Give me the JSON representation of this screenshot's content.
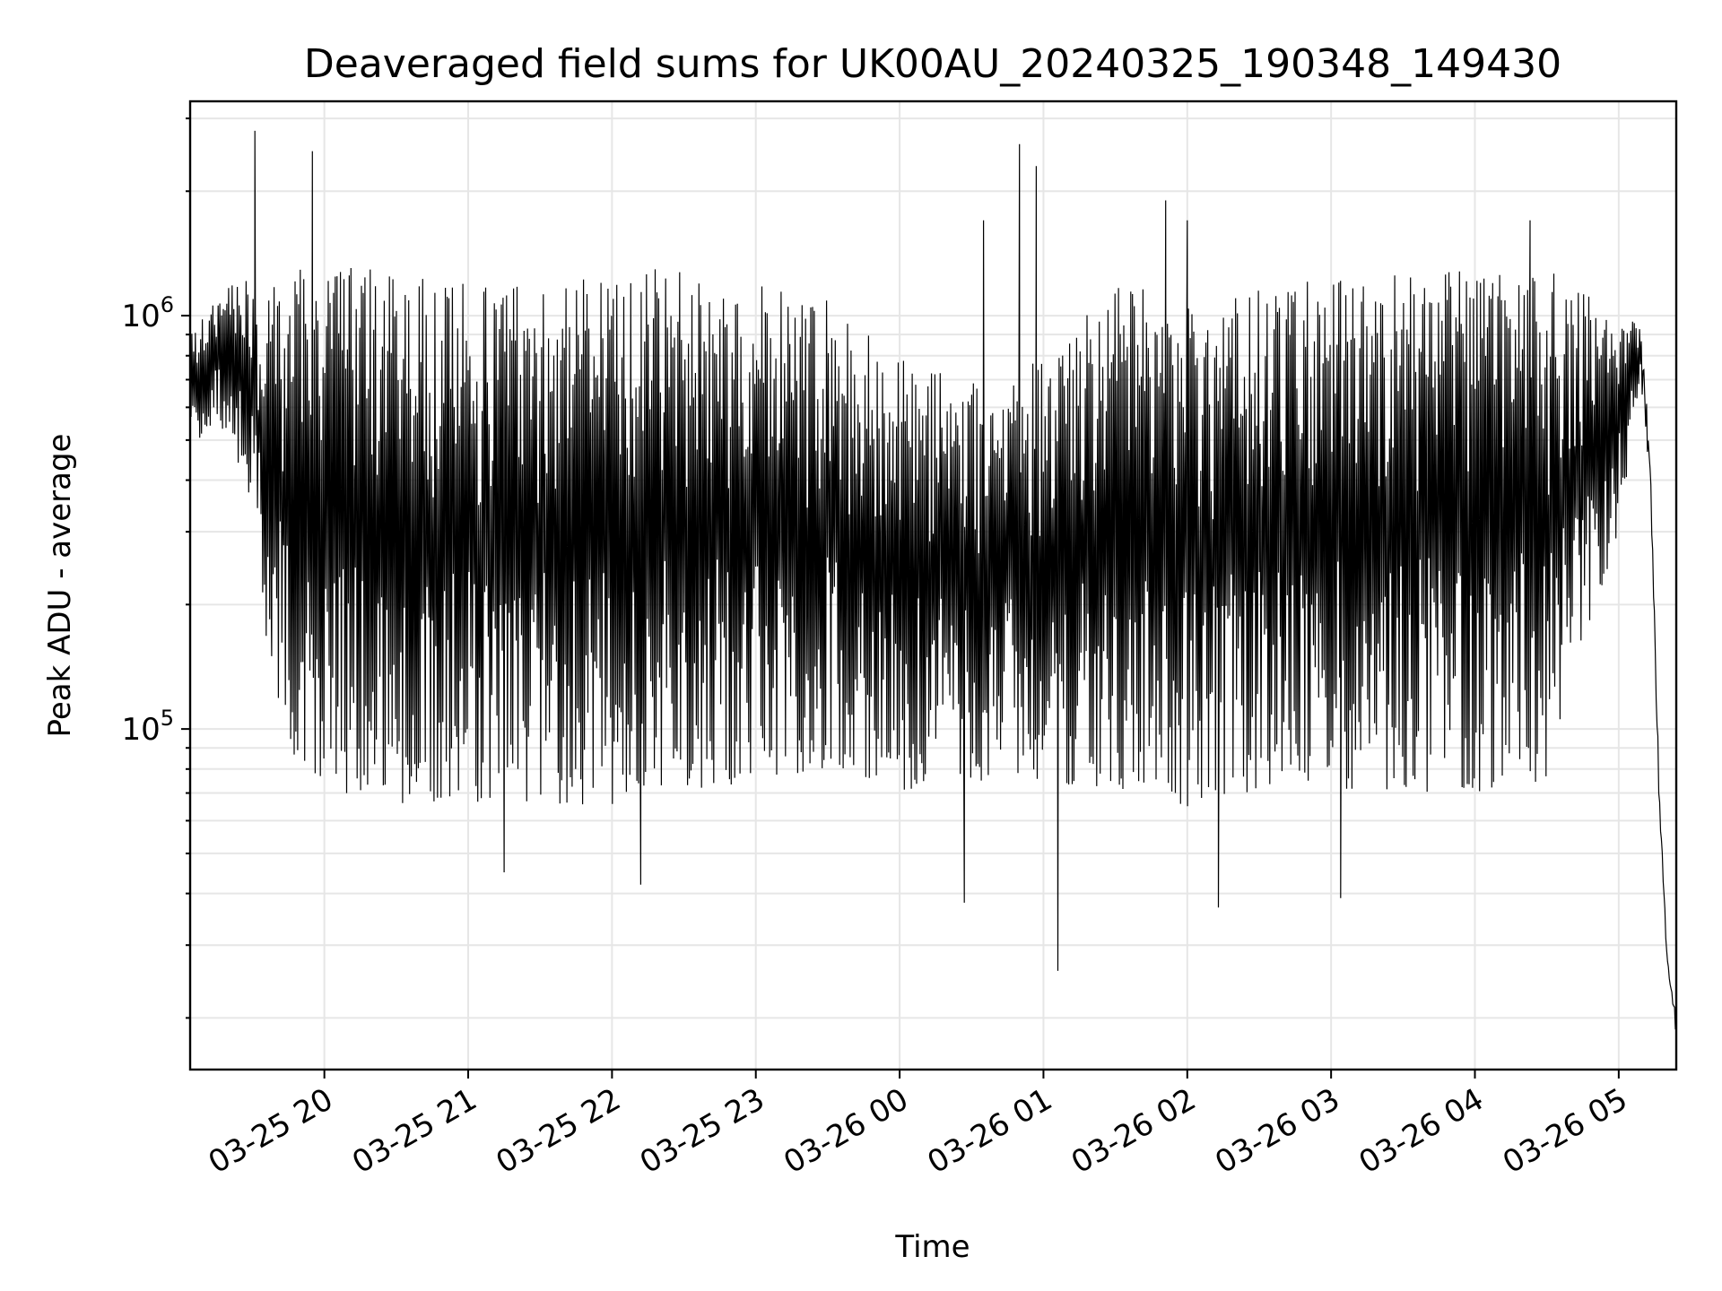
{
  "chart_data": {
    "type": "line",
    "title": "Deaveraged field sums for UK00AU_20240325_190348_149430",
    "xlabel": "Time",
    "ylabel": "Peak ADU - average",
    "y_scale": "log",
    "grid": true,
    "grid_minor_y": true,
    "legend": "none",
    "line_color": "#000000",
    "xlim": [
      "2024-03-25 19:04",
      "2024-03-26 05:24"
    ],
    "ylim": [
      15000,
      3300000
    ],
    "x_ticks": [
      {
        "value": "2024-03-25 20:00",
        "label": "03-25 20"
      },
      {
        "value": "2024-03-25 21:00",
        "label": "03-25 21"
      },
      {
        "value": "2024-03-25 22:00",
        "label": "03-25 22"
      },
      {
        "value": "2024-03-25 23:00",
        "label": "03-25 23"
      },
      {
        "value": "2024-03-26 00:00",
        "label": "03-26 00"
      },
      {
        "value": "2024-03-26 01:00",
        "label": "03-26 01"
      },
      {
        "value": "2024-03-26 02:00",
        "label": "03-26 02"
      },
      {
        "value": "2024-03-26 03:00",
        "label": "03-26 03"
      },
      {
        "value": "2024-03-26 04:00",
        "label": "03-26 04"
      },
      {
        "value": "2024-03-26 05:00",
        "label": "03-26 05"
      }
    ],
    "y_ticks": [
      {
        "value": 100000,
        "base": "10",
        "exp": "5"
      },
      {
        "value": 1000000,
        "base": "10",
        "exp": "6"
      }
    ],
    "series": [
      {
        "envelope": [
          {
            "x": "2024-03-25 19:04",
            "low": 480000,
            "high": 900000
          },
          {
            "x": "2024-03-25 19:15",
            "low": 550000,
            "high": 1100000
          },
          {
            "x": "2024-03-25 19:20",
            "low": 500000,
            "high": 1300000
          },
          {
            "x": "2024-03-25 19:30",
            "low": 350000,
            "high": 1200000
          },
          {
            "x": "2024-03-25 19:35",
            "low": 160000,
            "high": 1100000
          },
          {
            "x": "2024-03-25 19:45",
            "low": 90000,
            "high": 1300000
          },
          {
            "x": "2024-03-25 20:00",
            "low": 70000,
            "high": 1400000
          },
          {
            "x": "2024-03-25 20:30",
            "low": 65000,
            "high": 1250000
          },
          {
            "x": "2024-03-25 21:00",
            "low": 65000,
            "high": 1200000
          },
          {
            "x": "2024-03-25 21:30",
            "low": 65000,
            "high": 1250000
          },
          {
            "x": "2024-03-25 22:00",
            "low": 65000,
            "high": 1300000
          },
          {
            "x": "2024-03-25 22:30",
            "low": 70000,
            "high": 1300000
          },
          {
            "x": "2024-03-25 23:00",
            "low": 75000,
            "high": 1200000
          },
          {
            "x": "2024-03-25 23:30",
            "low": 80000,
            "high": 1100000
          },
          {
            "x": "2024-03-26 00:00",
            "low": 70000,
            "high": 800000
          },
          {
            "x": "2024-03-26 00:30",
            "low": 75000,
            "high": 700000
          },
          {
            "x": "2024-03-26 01:00",
            "low": 75000,
            "high": 800000
          },
          {
            "x": "2024-03-26 01:30",
            "low": 70000,
            "high": 1200000
          },
          {
            "x": "2024-03-26 02:00",
            "low": 65000,
            "high": 1100000
          },
          {
            "x": "2024-03-26 02:30",
            "low": 70000,
            "high": 1150000
          },
          {
            "x": "2024-03-26 03:00",
            "low": 70000,
            "high": 1250000
          },
          {
            "x": "2024-03-26 03:30",
            "low": 70000,
            "high": 1300000
          },
          {
            "x": "2024-03-26 04:00",
            "low": 70000,
            "high": 1300000
          },
          {
            "x": "2024-03-26 04:30",
            "low": 75000,
            "high": 1300000
          },
          {
            "x": "2024-03-26 05:00",
            "low": 300000,
            "high": 1000000
          },
          {
            "x": "2024-03-26 05:09",
            "low": 700000,
            "high": 950000
          },
          {
            "x": "2024-03-26 05:13",
            "low": 400000,
            "high": 500000
          },
          {
            "x": "2024-03-26 05:17",
            "low": 60000,
            "high": 70000
          },
          {
            "x": "2024-03-26 05:20",
            "low": 28000,
            "high": 30000
          },
          {
            "x": "2024-03-26 05:24",
            "low": 18000,
            "high": 20000
          }
        ],
        "spikes": [
          {
            "x": "2024-03-25 19:31",
            "value": 2800000
          },
          {
            "x": "2024-03-25 19:38",
            "value": 150000
          },
          {
            "x": "2024-03-25 19:55",
            "value": 2500000
          },
          {
            "x": "2024-03-25 21:15",
            "value": 45000
          },
          {
            "x": "2024-03-25 22:12",
            "value": 42000
          },
          {
            "x": "2024-03-26 00:27",
            "value": 38000
          },
          {
            "x": "2024-03-26 00:35",
            "value": 1700000
          },
          {
            "x": "2024-03-26 00:50",
            "value": 2600000
          },
          {
            "x": "2024-03-26 00:57",
            "value": 2300000
          },
          {
            "x": "2024-03-26 01:06",
            "value": 26000
          },
          {
            "x": "2024-03-26 01:51",
            "value": 1900000
          },
          {
            "x": "2024-03-26 02:00",
            "value": 1700000
          },
          {
            "x": "2024-03-26 02:13",
            "value": 37000
          },
          {
            "x": "2024-03-26 03:04",
            "value": 39000
          },
          {
            "x": "2024-03-26 04:23",
            "value": 1700000
          }
        ]
      }
    ]
  }
}
